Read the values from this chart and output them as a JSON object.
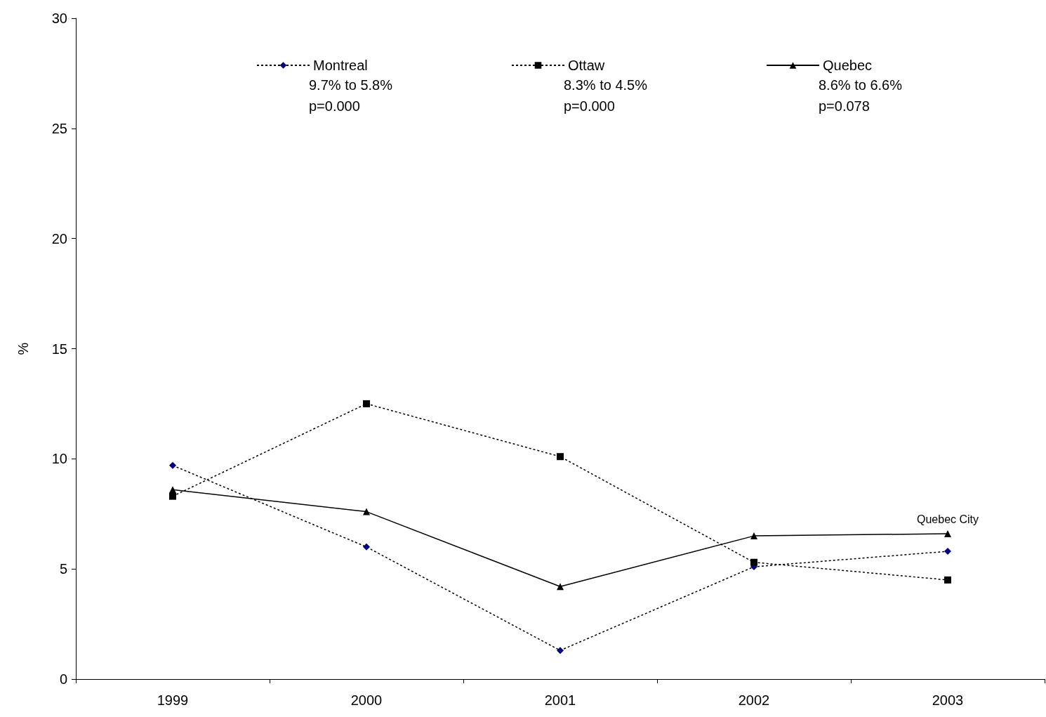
{
  "chart_data": {
    "type": "line",
    "ylabel": "%",
    "categories": [
      "1999",
      "2000",
      "2001",
      "2002",
      "2003"
    ],
    "series": [
      {
        "name": "Montreal",
        "color": "#000080",
        "marker": "diamond",
        "line_style": "dotted",
        "values": [
          9.7,
          6.0,
          1.3,
          5.1,
          5.8
        ]
      },
      {
        "name": "Ottaw",
        "color": "#000000",
        "marker": "square",
        "line_style": "dotted",
        "values": [
          8.3,
          12.5,
          10.1,
          5.3,
          4.5
        ]
      },
      {
        "name": "Quebec",
        "color": "#000000",
        "marker": "triangle",
        "line_style": "solid",
        "values": [
          8.6,
          7.6,
          4.2,
          6.5,
          6.6
        ]
      }
    ],
    "ylim": [
      0,
      30
    ],
    "yticks": [
      0,
      5,
      10,
      15,
      20,
      25,
      30
    ],
    "grid": false,
    "legend": "top",
    "annotations": [
      "9.7% to 5.8%\np=0.000",
      "8.3% to 4.5%\np=0.000",
      "8.6% to 6.6%\np=0.078",
      {
        "text": "Quebec City",
        "x": "2003",
        "y": 6.6
      }
    ]
  }
}
